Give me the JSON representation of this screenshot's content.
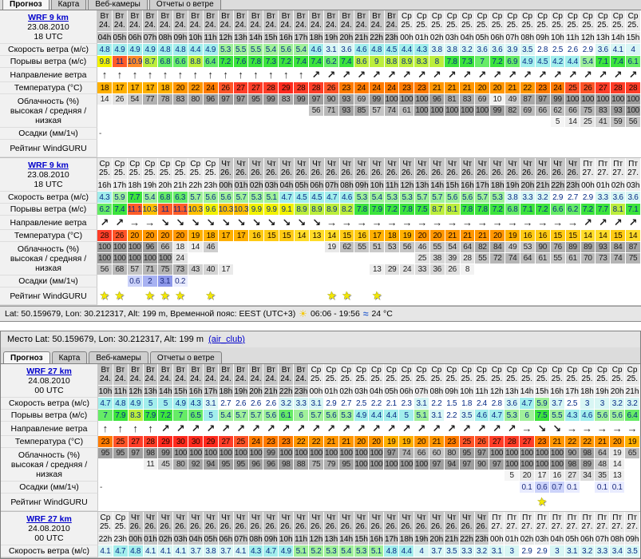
{
  "tabs": [
    "Прогноз",
    "Карта",
    "Веб-камеры",
    "Отчеты о ветре"
  ],
  "active_tab": "Прогноз",
  "window2": {
    "title_prefix": "Место Lat: 50.159679, Lon: 30.212317, Alt: 199 m",
    "title_link": "(air_club)"
  },
  "statusbar": {
    "text": "Lat: 50.159679, Lon: 30.212317, Alt: 199 m, Временной пояс: EEST (UTC+3)",
    "sun_icon": "sun-icon",
    "sun_times": "06:06 - 19:56",
    "wave_icon": "water-icon",
    "water_temp": "24 °C"
  },
  "row_labels": {
    "speed": "Скорость ветра",
    "speed_unit": "(м/с)",
    "gusts": "Порывы ветра",
    "gusts_unit": "(м/с)",
    "direction": "Направление ветра",
    "temp": "Температура",
    "temp_unit": "(°C)",
    "clouds1": "Облачность (%)",
    "clouds2": "высокая / средняя / низкая",
    "precip": "Осадки (мм/1ч)",
    "rating": "Рейтинг WindGURU"
  },
  "colors": {
    "link": "#0000cc",
    "day_dark": "#c6c6c6",
    "day_light": "#eaeaea",
    "star": "#f4e800",
    "wind_scale": [
      [
        3,
        "#ffffff"
      ],
      [
        4.2,
        "#d8f6f4"
      ],
      [
        5.1,
        "#a2eeec"
      ],
      [
        6.1,
        "#a0f09a"
      ],
      [
        7.1,
        "#66ec66"
      ],
      [
        8,
        "#3ce43c"
      ],
      [
        9.1,
        "#bcee3c"
      ],
      [
        10,
        "#f2f200"
      ],
      [
        10.5,
        "#ffc000"
      ],
      [
        11,
        "#ff8c28"
      ],
      [
        11.5,
        "#ff5c28"
      ],
      [
        999,
        "#ff3028"
      ]
    ],
    "temp_scale": [
      [
        15,
        "#ffdc28"
      ],
      [
        17,
        "#ffcb14"
      ],
      [
        20,
        "#ffb000"
      ],
      [
        23,
        "#ff9600"
      ],
      [
        25,
        "#ff7b00"
      ],
      [
        27,
        "#ff5428"
      ],
      [
        29,
        "#ff3d28"
      ],
      [
        999,
        "#ff2a1e"
      ]
    ],
    "precip_scale": [
      [
        0.45,
        "#e9ecff"
      ],
      [
        1.1,
        "#ccd3fa"
      ],
      [
        2.6,
        "#a8b2f2"
      ],
      [
        999,
        "#8d98ea"
      ]
    ]
  },
  "tables": [
    {
      "model": {
        "name": "WRF 9 km",
        "date": "23.08.2010",
        "utc": "18 UTC"
      },
      "day_groups": [
        {
          "d": "Вт",
          "n": "24.",
          "span": 20,
          "s": "d"
        },
        {
          "d": "Ср",
          "n": "25.",
          "span": 16,
          "s": "l"
        }
      ],
      "hours": [
        "04h",
        "05h",
        "06h",
        "07h",
        "08h",
        "09h",
        "10h",
        "11h",
        "12h",
        "13h",
        "14h",
        "15h",
        "16h",
        "17h",
        "18h",
        "19h",
        "20h",
        "21h",
        "22h",
        "23h",
        "00h",
        "01h",
        "02h",
        "03h",
        "04h",
        "05h",
        "06h",
        "07h",
        "08h",
        "09h",
        "10h",
        "11h",
        "12h",
        "13h",
        "14h",
        "15h"
      ],
      "speed": [
        4.8,
        4.9,
        4.9,
        4.9,
        4.8,
        4.8,
        4.4,
        4.9,
        5.3,
        5.5,
        5.5,
        5.4,
        5.6,
        5.4,
        4.6,
        3.1,
        3.6,
        4.6,
        4.8,
        4.5,
        4.4,
        4.3,
        3.8,
        3.8,
        3.2,
        3.6,
        3.6,
        3.9,
        3.5,
        2.8,
        2.5,
        2.6,
        2.9,
        3.6,
        4.1,
        4
      ],
      "gusts": [
        9.8,
        11,
        10.9,
        8.7,
        6.8,
        6.6,
        8.8,
        6.4,
        7.2,
        7.6,
        7.8,
        7.3,
        7.2,
        7.4,
        7.4,
        6.2,
        7.4,
        8.6,
        9,
        8.8,
        8.9,
        8.3,
        8,
        7.8,
        7.3,
        7,
        7.2,
        6.9,
        4.9,
        4.5,
        4.2,
        4.4,
        5.4,
        7.1,
        7.4,
        6.1
      ],
      "dirs": [
        "↑",
        "↑",
        "↑",
        "↑",
        "↑",
        "↑",
        "↑",
        "↑",
        "↑",
        "↑",
        "↑",
        "↑",
        "↑",
        "↑",
        "↗",
        "↗",
        "↗",
        "↗",
        "↗",
        "↗",
        "↗",
        "↗",
        "↗",
        "↗",
        "↗",
        "↗",
        "↗",
        "↗",
        "↗",
        "↗",
        "↗",
        "↗",
        "↗",
        "↗",
        "↗",
        "↗"
      ],
      "temp": [
        18,
        17,
        17,
        17,
        18,
        20,
        22,
        24,
        26,
        27,
        27,
        28,
        29,
        28,
        28,
        26,
        23,
        24,
        24,
        24,
        23,
        23,
        21,
        21,
        21,
        20,
        20,
        21,
        22,
        23,
        24,
        25,
        26,
        27,
        28,
        28
      ],
      "cloud_high": [
        14,
        26,
        54,
        77,
        78,
        83,
        80,
        96,
        97,
        97,
        95,
        99,
        83,
        99,
        97,
        90,
        93,
        69,
        99,
        100,
        100,
        100,
        96,
        81,
        83,
        69,
        10,
        49,
        87,
        97,
        99,
        100,
        100,
        100,
        100,
        100
      ],
      "cloud_mid": [
        null,
        null,
        null,
        null,
        null,
        null,
        null,
        null,
        null,
        null,
        null,
        null,
        null,
        null,
        56,
        71,
        93,
        85,
        57,
        74,
        61,
        100,
        100,
        100,
        100,
        100,
        99,
        82,
        69,
        66,
        62,
        66,
        75,
        83,
        93,
        100
      ],
      "cloud_low": [
        null,
        null,
        null,
        null,
        null,
        null,
        null,
        null,
        null,
        null,
        null,
        null,
        null,
        null,
        null,
        null,
        null,
        null,
        null,
        null,
        null,
        null,
        null,
        null,
        null,
        null,
        null,
        null,
        null,
        null,
        5,
        14,
        25,
        41,
        59,
        56
      ],
      "precip": {
        "0": "-"
      },
      "rating": [],
      "partial": false
    },
    {
      "model": {
        "name": "WRF 9 km",
        "date": "23.08.2010",
        "utc": "18 UTC"
      },
      "day_groups": [
        {
          "d": "Ср",
          "n": "25.",
          "span": 8,
          "s": "l"
        },
        {
          "d": "Чт",
          "n": "26.",
          "span": 24,
          "s": "d"
        },
        {
          "d": "Пт",
          "n": "27.",
          "span": 4,
          "s": "l"
        }
      ],
      "hours": [
        "16h",
        "17h",
        "18h",
        "19h",
        "20h",
        "21h",
        "22h",
        "23h",
        "00h",
        "01h",
        "02h",
        "03h",
        "04h",
        "05h",
        "06h",
        "07h",
        "08h",
        "09h",
        "10h",
        "11h",
        "12h",
        "13h",
        "14h",
        "15h",
        "16h",
        "17h",
        "18h",
        "19h",
        "20h",
        "21h",
        "22h",
        "23h",
        "00h",
        "01h",
        "02h",
        "03h"
      ],
      "speed": [
        4.3,
        5.9,
        7.7,
        5.4,
        6.8,
        6.3,
        5.7,
        5.6,
        5.6,
        5.7,
        5.3,
        5.1,
        4.7,
        4.5,
        4.5,
        4.7,
        4.6,
        5.3,
        5.4,
        5.3,
        5.3,
        5.7,
        5.7,
        5.6,
        5.6,
        5.7,
        5.3,
        3.8,
        3.3,
        3.2,
        2.9,
        2.7,
        2.9,
        3.3,
        3.6,
        3.6
      ],
      "gusts": [
        6.2,
        7.4,
        11.1,
        10.3,
        11,
        11.1,
        10.3,
        9.6,
        10.3,
        10.3,
        9.9,
        9.9,
        9.1,
        8.9,
        8.9,
        8.9,
        8.2,
        7.8,
        7.9,
        7.2,
        7.8,
        7.5,
        8.7,
        8.1,
        7.8,
        7.8,
        7.2,
        6.8,
        7.1,
        7.2,
        6.6,
        6.2,
        7.2,
        7.7,
        8.1,
        7.1
      ],
      "dirs": [
        "↗",
        "↗",
        "→",
        "→",
        "↘",
        "↘",
        "↘",
        "↘",
        "↘",
        "↘",
        "↘",
        "↘",
        "↘",
        "↘",
        "↘",
        "→",
        "→",
        "→",
        "→",
        "→",
        "→",
        "→",
        "→",
        "→",
        "→",
        "→",
        "→",
        "→",
        "→",
        "→",
        "→",
        "→",
        "↗",
        "↗",
        "↗",
        "↗"
      ],
      "temp": [
        28,
        26,
        20,
        20,
        20,
        20,
        19,
        18,
        17,
        17,
        16,
        15,
        15,
        14,
        13,
        14,
        15,
        16,
        17,
        18,
        19,
        20,
        20,
        21,
        21,
        21,
        20,
        19,
        16,
        16,
        15,
        15,
        14,
        14,
        15,
        14
      ],
      "cloud_high": [
        100,
        100,
        100,
        96,
        66,
        18,
        14,
        46,
        null,
        null,
        null,
        null,
        null,
        null,
        null,
        19,
        62,
        55,
        51,
        53,
        56,
        46,
        55,
        54,
        64,
        82,
        84,
        49,
        53,
        90,
        76,
        89,
        89,
        93,
        84,
        87
      ],
      "cloud_mid": [
        100,
        100,
        100,
        100,
        100,
        24,
        null,
        null,
        null,
        null,
        null,
        null,
        null,
        null,
        null,
        null,
        null,
        null,
        null,
        null,
        null,
        25,
        38,
        39,
        28,
        55,
        72,
        74,
        64,
        61,
        55,
        61,
        70,
        73,
        74,
        75
      ],
      "cloud_low": [
        56,
        68,
        57,
        71,
        75,
        73,
        43,
        40,
        17,
        null,
        null,
        null,
        null,
        null,
        null,
        null,
        null,
        null,
        13,
        29,
        24,
        33,
        36,
        26,
        8,
        null,
        null,
        null,
        null,
        null,
        null,
        null,
        null,
        null,
        null,
        null
      ],
      "precip": {
        "2": "0.6",
        "3": "2",
        "4": "3.1",
        "5": "0.2"
      },
      "rating": [
        0,
        1,
        3,
        4,
        5,
        7,
        15,
        16,
        18
      ],
      "partial": false
    },
    {
      "model": {
        "name": "WRF 27 km",
        "date": "24.08.2010",
        "utc": "00 UTC"
      },
      "day_groups": [
        {
          "d": "Вт",
          "n": "24.",
          "span": 14,
          "s": "d"
        },
        {
          "d": "Ср",
          "n": "25.",
          "span": 22,
          "s": "l"
        }
      ],
      "hours": [
        "10h",
        "11h",
        "12h",
        "13h",
        "14h",
        "15h",
        "16h",
        "17h",
        "18h",
        "19h",
        "20h",
        "21h",
        "22h",
        "23h",
        "00h",
        "01h",
        "02h",
        "03h",
        "04h",
        "05h",
        "06h",
        "07h",
        "08h",
        "09h",
        "10h",
        "11h",
        "12h",
        "13h",
        "14h",
        "15h",
        "16h",
        "17h",
        "18h",
        "19h",
        "20h",
        "21h"
      ],
      "speed": [
        4.7,
        4.8,
        4.9,
        5,
        5,
        4.9,
        4.3,
        3.1,
        2.7,
        2.6,
        2.6,
        2.6,
        3.2,
        3.3,
        3.1,
        2.9,
        2.7,
        2.5,
        2.2,
        2.1,
        2.3,
        3.1,
        2.2,
        1.5,
        1.8,
        2.4,
        2.8,
        3.6,
        4.7,
        5.9,
        3.7,
        2.5,
        3,
        3,
        3.2,
        3.2
      ],
      "gusts": [
        7,
        7.9,
        8.3,
        7.9,
        7.2,
        7,
        6.5,
        5,
        5.4,
        5.7,
        5.7,
        5.6,
        6.1,
        6,
        5.7,
        5.6,
        5.3,
        4.9,
        4.4,
        4.4,
        5,
        5.1,
        3.1,
        2.2,
        3.5,
        4.6,
        4.7,
        5.3,
        6,
        7.5,
        5.5,
        4.3,
        4.6,
        5.6,
        5.6,
        6.4
      ],
      "dirs": [
        "↑",
        "↑",
        "↑",
        "↑",
        "↗",
        "↗",
        "↗",
        "↗",
        "↗",
        "↗",
        "↗",
        "↗",
        "↗",
        "↗",
        "↗",
        "↗",
        "↗",
        "↗",
        "↗",
        "↗",
        "↗",
        "↗",
        "↗",
        "↗",
        "↗",
        "↗",
        "↗",
        "↗",
        "→",
        "↘",
        "↘",
        "→",
        "→",
        "→",
        "→",
        "→"
      ],
      "temp": [
        23,
        25,
        27,
        28,
        29,
        30,
        30,
        29,
        27,
        25,
        24,
        23,
        23,
        22,
        22,
        21,
        21,
        20,
        20,
        19,
        19,
        20,
        21,
        23,
        25,
        26,
        27,
        28,
        27,
        23,
        21,
        22,
        22,
        21,
        20,
        19
      ],
      "cloud_high": [
        95,
        95,
        97,
        98,
        99,
        100,
        100,
        100,
        100,
        100,
        100,
        99,
        100,
        100,
        100,
        100,
        100,
        100,
        100,
        97,
        74,
        66,
        60,
        80,
        95,
        97,
        100,
        100,
        100,
        100,
        100,
        90,
        98,
        64,
        19,
        65
      ],
      "cloud_mid": [
        null,
        null,
        null,
        11,
        45,
        80,
        92,
        94,
        95,
        95,
        96,
        96,
        98,
        88,
        75,
        79,
        95,
        100,
        100,
        100,
        100,
        100,
        97,
        94,
        97,
        90,
        97,
        100,
        100,
        100,
        100,
        98,
        89,
        48,
        14,
        null
      ],
      "cloud_low": [
        null,
        null,
        null,
        null,
        null,
        null,
        null,
        null,
        null,
        null,
        null,
        null,
        null,
        null,
        null,
        null,
        null,
        null,
        null,
        null,
        null,
        null,
        null,
        null,
        null,
        null,
        null,
        5,
        20,
        17,
        16,
        27,
        34,
        35,
        13,
        null
      ],
      "precip": {
        "0": "-",
        "28": "0.1",
        "29": "0.6",
        "30": "0.7",
        "31": "0.1",
        "33": "0.1",
        "34": "0.1"
      },
      "rating": [
        29
      ],
      "partial": false
    },
    {
      "model": {
        "name": "WRF 27 km",
        "date": "24.08.2010",
        "utc": "00 UTC"
      },
      "day_groups": [
        {
          "d": "Ср",
          "n": "25.",
          "span": 2,
          "s": "l"
        },
        {
          "d": "Чт",
          "n": "26.",
          "span": 24,
          "s": "d"
        },
        {
          "d": "Пт",
          "n": "27.",
          "span": 10,
          "s": "l"
        }
      ],
      "hours": [
        "22h",
        "23h",
        "00h",
        "01h",
        "02h",
        "03h",
        "04h",
        "05h",
        "06h",
        "07h",
        "08h",
        "09h",
        "10h",
        "11h",
        "12h",
        "13h",
        "14h",
        "15h",
        "16h",
        "17h",
        "18h",
        "19h",
        "20h",
        "21h",
        "22h",
        "23h",
        "00h",
        "01h",
        "02h",
        "03h",
        "04h",
        "05h",
        "06h",
        "07h",
        "08h",
        "09h"
      ],
      "speed": [
        4.1,
        4.7,
        4.8,
        4.1,
        4.1,
        4.1,
        3.7,
        3.8,
        3.7,
        4.1,
        4.3,
        4.7,
        4.9,
        5.1,
        5.2,
        5.3,
        5.4,
        5.3,
        5.1,
        4.8,
        4.4,
        4,
        3.7,
        3.5,
        3.3,
        3.2,
        3.1,
        3,
        2.9,
        2.9,
        3,
        3.1,
        3.2,
        3.3,
        3.4,
        3.5
      ],
      "gusts": [],
      "dirs": [],
      "temp": [],
      "cloud_high": [],
      "cloud_mid": [],
      "cloud_low": [],
      "precip": {},
      "rating": [],
      "partial": true
    }
  ]
}
